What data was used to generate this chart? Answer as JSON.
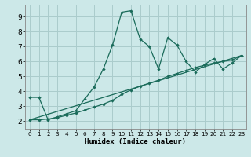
{
  "xlabel": "Humidex (Indice chaleur)",
  "bg_color": "#cce8e8",
  "grid_color": "#aacccc",
  "line_color": "#1a6b5a",
  "xlim": [
    -0.5,
    23.5
  ],
  "ylim": [
    1.5,
    9.8
  ],
  "xticks": [
    0,
    1,
    2,
    3,
    4,
    5,
    6,
    7,
    8,
    9,
    10,
    11,
    12,
    13,
    14,
    15,
    16,
    17,
    18,
    19,
    20,
    21,
    22,
    23
  ],
  "yticks": [
    2,
    3,
    4,
    5,
    6,
    7,
    8,
    9
  ],
  "line1_x": [
    0,
    1,
    2,
    3,
    4,
    5,
    6,
    7,
    8,
    9,
    10,
    11,
    12,
    13,
    14,
    15,
    16,
    17,
    18,
    19,
    20,
    21,
    22,
    23
  ],
  "line1_y": [
    3.6,
    3.6,
    2.1,
    2.3,
    2.5,
    2.7,
    3.5,
    4.3,
    5.5,
    7.1,
    9.3,
    9.4,
    7.5,
    7.0,
    5.5,
    7.6,
    7.1,
    6.0,
    5.3,
    5.8,
    6.2,
    5.5,
    5.9,
    6.4
  ],
  "line2_x": [
    0,
    1,
    2,
    3,
    4,
    5,
    6,
    7,
    8,
    9,
    10,
    11,
    12,
    13,
    14,
    15,
    16,
    17,
    18,
    19,
    20,
    21,
    22,
    23
  ],
  "line2_y": [
    2.1,
    2.1,
    2.15,
    2.25,
    2.4,
    2.55,
    2.75,
    2.95,
    3.15,
    3.4,
    3.8,
    4.1,
    4.35,
    4.55,
    4.75,
    5.0,
    5.2,
    5.4,
    5.6,
    5.75,
    5.9,
    6.0,
    6.1,
    6.4
  ],
  "line3_x": [
    0,
    23
  ],
  "line3_y": [
    2.1,
    6.4
  ]
}
